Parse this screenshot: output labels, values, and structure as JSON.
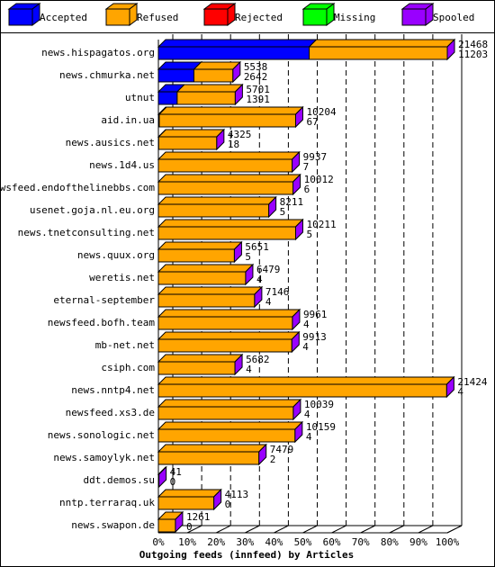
{
  "chart_data": {
    "type": "bar3d",
    "title": "Outgoing feeds (innfeed) by Articles",
    "categories": [
      "news.hispagatos.org",
      "news.chmurka.net",
      "utnut",
      "aid.in.ua",
      "news.ausics.net",
      "news.1d4.us",
      "newsfeed.endofthelinebbs.com",
      "usenet.goja.nl.eu.org",
      "news.tnetconsulting.net",
      "news.quux.org",
      "weretis.net",
      "eternal-september",
      "newsfeed.bofh.team",
      "mb-net.net",
      "csiph.com",
      "news.nntp4.net",
      "newsfeed.xs3.de",
      "news.sonologic.net",
      "news.samoylyk.net",
      "ddt.demos.su",
      "nntp.terraraq.uk",
      "news.swapon.de"
    ],
    "series": [
      {
        "name": "Accepted",
        "color": "#0000ff",
        "values": [
          52.2,
          12.3,
          6.5,
          0.3,
          0.1,
          0,
          0,
          0,
          0,
          0,
          0,
          0,
          0,
          0,
          0,
          0,
          0,
          0,
          0,
          0,
          0,
          0
        ]
      },
      {
        "name": "Refused",
        "color": "#ffa500",
        "values": [
          47.8,
          13.5,
          20.1,
          47.2,
          20.1,
          46.3,
          46.6,
          38.2,
          47.5,
          26.3,
          30.2,
          33.3,
          46.4,
          46.2,
          26.5,
          99.8,
          46.7,
          47.3,
          34.8,
          0.2,
          19.2,
          5.9
        ]
      },
      {
        "name": "Rejected",
        "color": "#ff0000",
        "values": [
          0,
          0,
          0,
          0,
          0,
          0,
          0,
          0,
          0,
          0,
          0,
          0,
          0,
          0,
          0,
          0,
          0,
          0,
          0,
          0,
          0,
          0
        ]
      },
      {
        "name": "Missing",
        "color": "#00ff00",
        "values": [
          0,
          0,
          0,
          0,
          0,
          0,
          0,
          0,
          0,
          0,
          0,
          0,
          0,
          0,
          0,
          0,
          0,
          0,
          0,
          0,
          0,
          0
        ]
      },
      {
        "name": "Spooled",
        "color": "#9900ff",
        "values": [
          0,
          0,
          0,
          0,
          0,
          0,
          0,
          0,
          0,
          0,
          0,
          0,
          0,
          0,
          0,
          0,
          0,
          0,
          0,
          0,
          0,
          0
        ]
      }
    ],
    "offered_labels": [
      21468,
      5538,
      5701,
      10204,
      4325,
      9937,
      10012,
      8211,
      10211,
      5651,
      6479,
      7146,
      9961,
      9913,
      5682,
      21424,
      10039,
      10159,
      7479,
      41,
      4113,
      1261
    ],
    "accepted_labels": [
      11203,
      2642,
      1391,
      67,
      18,
      7,
      6,
      5,
      5,
      5,
      4,
      4,
      4,
      4,
      4,
      4,
      4,
      4,
      2,
      0,
      0,
      0
    ],
    "xlim": [
      0,
      100
    ],
    "xticks": [
      {
        "value": 0,
        "label": "0%"
      },
      {
        "value": 10,
        "label": "10%"
      },
      {
        "value": 20,
        "label": "20%"
      },
      {
        "value": 30,
        "label": "30%"
      },
      {
        "value": 40,
        "label": "40%"
      },
      {
        "value": 50,
        "label": "50%"
      },
      {
        "value": 60,
        "label": "60%"
      },
      {
        "value": 70,
        "label": "70%"
      },
      {
        "value": 80,
        "label": "80%"
      },
      {
        "value": 90,
        "label": "90%"
      },
      {
        "value": 100,
        "label": "100%"
      }
    ],
    "grid": true
  }
}
